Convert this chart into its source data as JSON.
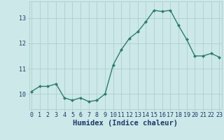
{
  "x": [
    0,
    1,
    2,
    3,
    4,
    5,
    6,
    7,
    8,
    9,
    10,
    11,
    12,
    13,
    14,
    15,
    16,
    17,
    18,
    19,
    20,
    21,
    22,
    23
  ],
  "y": [
    10.1,
    10.3,
    10.3,
    10.4,
    9.85,
    9.75,
    9.85,
    9.7,
    9.75,
    10.0,
    11.15,
    11.75,
    12.2,
    12.45,
    12.85,
    13.3,
    13.25,
    13.3,
    12.7,
    12.15,
    11.5,
    11.5,
    11.6,
    11.45
  ],
  "line_color": "#2e7d6e",
  "marker": "D",
  "marker_size": 2.0,
  "bg_color": "#cce8e8",
  "grid_color": "#aacaca",
  "xlabel": "Humidex (Indice chaleur)",
  "xlabel_color": "#1a3a6a",
  "xlabel_fontsize": 7.5,
  "ytick_labels": [
    "10",
    "11",
    "12",
    "13"
  ],
  "ytick_values": [
    10,
    11,
    12,
    13
  ],
  "xticks": [
    0,
    1,
    2,
    3,
    4,
    5,
    6,
    7,
    8,
    9,
    10,
    11,
    12,
    13,
    14,
    15,
    16,
    17,
    18,
    19,
    20,
    21,
    22,
    23
  ],
  "xlim": [
    -0.3,
    23.3
  ],
  "ylim": [
    9.4,
    13.65
  ],
  "tick_color": "#1a3a6a",
  "tick_fontsize": 6.0,
  "linewidth": 1.0
}
